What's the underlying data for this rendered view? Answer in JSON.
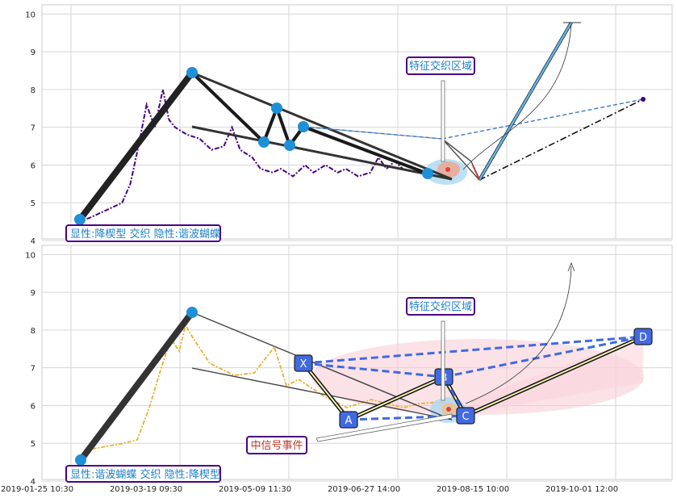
{
  "colors": {
    "background": "#ffffff",
    "grid": "#d6d6d6",
    "price_top": "#4b0082",
    "price_bottom": "#e8b030",
    "pattern_line": "#333333",
    "node": "#1e90d8",
    "xabcd_box": "#4169e1",
    "label_border": "#4b0082",
    "label_text": "#1f7fc6",
    "event_text": "#c0392b",
    "highlight_ellipse": "#f7c6d0",
    "projection_blue": "#3a78c9"
  },
  "chart_data": [
    {
      "type": "line",
      "panel": "top",
      "title": "",
      "xlabel": "",
      "ylabel": "",
      "ylim": [
        4,
        10.2
      ],
      "yticks": [
        "4",
        "5",
        "6",
        "7",
        "8",
        "9",
        "10"
      ],
      "grid": true,
      "series": [
        {
          "values_desc": "price",
          "points": [
            [
              0,
              4.5
            ],
            [
              0.03,
              4.6
            ],
            [
              0.07,
              4.8
            ],
            [
              0.11,
              5.0
            ],
            [
              0.13,
              5.5
            ],
            [
              0.15,
              6.5
            ],
            [
              0.17,
              7.6
            ],
            [
              0.19,
              7.0
            ],
            [
              0.21,
              8.0
            ],
            [
              0.225,
              7.2
            ],
            [
              0.24,
              7.0
            ],
            [
              0.27,
              6.8
            ],
            [
              0.3,
              6.7
            ],
            [
              0.33,
              6.4
            ],
            [
              0.36,
              6.5
            ],
            [
              0.38,
              7.0
            ],
            [
              0.4,
              6.4
            ],
            [
              0.43,
              6.2
            ],
            [
              0.45,
              5.9
            ],
            [
              0.48,
              5.8
            ],
            [
              0.5,
              5.9
            ],
            [
              0.53,
              5.7
            ],
            [
              0.56,
              6.0
            ],
            [
              0.58,
              5.8
            ],
            [
              0.61,
              6.0
            ],
            [
              0.64,
              5.8
            ],
            [
              0.66,
              5.9
            ],
            [
              0.69,
              5.7
            ],
            [
              0.72,
              5.8
            ],
            [
              0.74,
              6.2
            ],
            [
              0.76,
              5.9
            ],
            [
              0.78,
              6.1
            ],
            [
              0.8,
              5.9
            ]
          ]
        }
      ],
      "annotations": {
        "bottom_label": "显性:降楔型 交织 隐性:谐波蝴蝶",
        "zone_label": "特征交织区域"
      }
    },
    {
      "type": "line",
      "panel": "bottom",
      "title": "",
      "xlabel": "",
      "ylabel": "",
      "ylim": [
        4,
        10.2
      ],
      "yticks": [
        "4",
        "5",
        "6",
        "7",
        "8",
        "9",
        "10"
      ],
      "xticks": [
        "2019-01-25 10:30",
        "2019-03-19 09:30",
        "2019-05-09 11:30",
        "2019-06-27 14:00",
        "2019-08-15 10:00",
        "2019-10-01 12:00"
      ],
      "grid": true,
      "xabcd_points": [
        {
          "label": "X",
          "value": 7.1
        },
        {
          "label": "A",
          "value": 5.55
        },
        {
          "label": "B",
          "value": 6.75
        },
        {
          "label": "C",
          "value": 5.7
        },
        {
          "label": "D",
          "value": 7.8
        }
      ],
      "annotations": {
        "bottom_label": "显性:谐波蝴蝶 交织 隐性:降楔型",
        "zone_label": "特征交织区域",
        "event_label": "中信号事件"
      }
    }
  ]
}
